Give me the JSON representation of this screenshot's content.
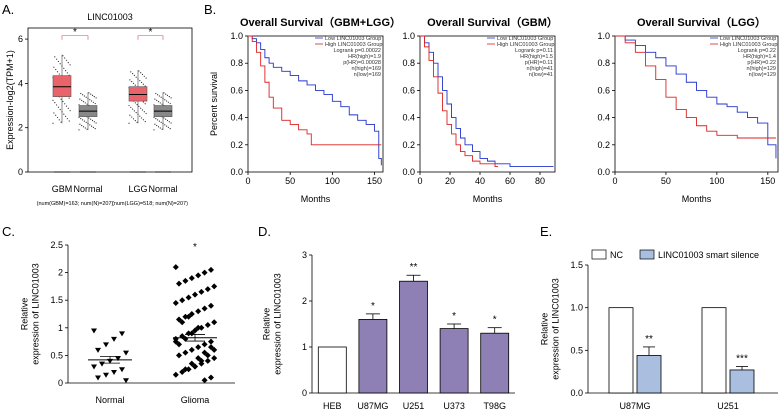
{
  "panels": {
    "a": "A.",
    "b": "B.",
    "c": "C.",
    "d": "D.",
    "e": "E."
  },
  "chart_data": [
    {
      "id": "A",
      "type": "box",
      "title": "LINC01003",
      "ylabel": "Expression-log2(TPM+1)",
      "ylim": [
        0,
        6.5
      ],
      "yticks": [
        "0",
        "2",
        "4",
        "6"
      ],
      "categories": [
        "GBM",
        "Normal",
        "LGG",
        "Normal"
      ],
      "colors": [
        "#e8646a",
        "#888888",
        "#e8646a",
        "#888888"
      ],
      "boxes": [
        {
          "q1": 3.4,
          "median": 3.85,
          "q3": 4.35,
          "min": 2.2,
          "max": 5.3
        },
        {
          "q1": 2.5,
          "median": 2.75,
          "q3": 3.0,
          "min": 1.9,
          "max": 3.6
        },
        {
          "q1": 3.2,
          "median": 3.5,
          "q3": 3.85,
          "min": 2.2,
          "max": 4.6
        },
        {
          "q1": 2.5,
          "median": 2.75,
          "q3": 3.0,
          "min": 1.9,
          "max": 3.6
        }
      ],
      "footnotes": [
        "(num(GBM)=163; num(N)=207)",
        "(num(LGG)=518; num(N)=207)"
      ],
      "significance": [
        "*",
        "*"
      ]
    },
    {
      "id": "B1",
      "type": "line",
      "title": "Overall Survival（GBM+LGG）",
      "xlabel": "Months",
      "ylabel": "Percent survival",
      "xlim": [
        0,
        160
      ],
      "ylim": [
        0,
        1.0
      ],
      "xticks": [
        "0",
        "50",
        "100",
        "150"
      ],
      "yticks": [
        "0.0",
        "0.2",
        "0.4",
        "0.6",
        "0.8",
        "1.0"
      ],
      "legend": [
        "Low LINC01003 Group",
        "High LINC01003 Group",
        "Logrank p=0.00022",
        "HR(high)=1.9",
        "p(HR)=0.00028",
        "n(high)=169",
        "n(low)=169"
      ],
      "series": [
        {
          "name": "Low LINC01003 Group",
          "color": "#2233cc",
          "points": [
            [
              0,
              1
            ],
            [
              5,
              0.98
            ],
            [
              10,
              0.95
            ],
            [
              15,
              0.9
            ],
            [
              20,
              0.84
            ],
            [
              25,
              0.8
            ],
            [
              30,
              0.77
            ],
            [
              40,
              0.74
            ],
            [
              50,
              0.71
            ],
            [
              60,
              0.67
            ],
            [
              70,
              0.64
            ],
            [
              80,
              0.6
            ],
            [
              90,
              0.57
            ],
            [
              100,
              0.52
            ],
            [
              110,
              0.48
            ],
            [
              120,
              0.42
            ],
            [
              130,
              0.38
            ],
            [
              140,
              0.35
            ],
            [
              150,
              0.3
            ],
            [
              155,
              0.1
            ],
            [
              158,
              0.05
            ]
          ]
        },
        {
          "name": "High LINC01003 Group",
          "color": "#dd2222",
          "points": [
            [
              0,
              1
            ],
            [
              5,
              0.96
            ],
            [
              10,
              0.88
            ],
            [
              15,
              0.78
            ],
            [
              20,
              0.66
            ],
            [
              25,
              0.55
            ],
            [
              30,
              0.47
            ],
            [
              40,
              0.38
            ],
            [
              50,
              0.35
            ],
            [
              60,
              0.31
            ],
            [
              70,
              0.28
            ],
            [
              75,
              0.2
            ],
            [
              90,
              0.2
            ],
            [
              100,
              0.2
            ],
            [
              150,
              0.2
            ],
            [
              158,
              0.2
            ]
          ]
        }
      ]
    },
    {
      "id": "B2",
      "type": "line",
      "title": "Overall Survival（GBM）",
      "xlabel": "Months",
      "ylabel": "",
      "xlim": [
        0,
        90
      ],
      "ylim": [
        0,
        1.0
      ],
      "xticks": [
        "0",
        "20",
        "40",
        "60",
        "80"
      ],
      "yticks": [
        "0.0",
        "0.2",
        "0.4",
        "0.6",
        "0.8",
        "1.0"
      ],
      "legend": [
        "Low LINC01003 Group",
        "High LINC01003 Group",
        "Logrank p=0.11",
        "HR(high)=1.5",
        "p(HR)=0.11",
        "n(high)=41",
        "n(low)=41"
      ],
      "series": [
        {
          "name": "Low LINC01003 Group",
          "color": "#2233cc",
          "points": [
            [
              0,
              1
            ],
            [
              3,
              0.95
            ],
            [
              6,
              0.88
            ],
            [
              9,
              0.8
            ],
            [
              12,
              0.7
            ],
            [
              15,
              0.6
            ],
            [
              18,
              0.5
            ],
            [
              21,
              0.4
            ],
            [
              24,
              0.32
            ],
            [
              27,
              0.25
            ],
            [
              30,
              0.2
            ],
            [
              35,
              0.15
            ],
            [
              40,
              0.1
            ],
            [
              45,
              0.08
            ],
            [
              50,
              0.06
            ],
            [
              60,
              0.04
            ],
            [
              89,
              0.04
            ]
          ]
        },
        {
          "name": "High LINC01003 Group",
          "color": "#dd2222",
          "points": [
            [
              0,
              1
            ],
            [
              3,
              0.92
            ],
            [
              6,
              0.82
            ],
            [
              9,
              0.7
            ],
            [
              12,
              0.58
            ],
            [
              15,
              0.45
            ],
            [
              18,
              0.35
            ],
            [
              21,
              0.28
            ],
            [
              24,
              0.2
            ],
            [
              27,
              0.15
            ],
            [
              30,
              0.12
            ],
            [
              35,
              0.08
            ],
            [
              40,
              0.06
            ],
            [
              50,
              0.04
            ],
            [
              52,
              0.04
            ]
          ]
        }
      ]
    },
    {
      "id": "B3",
      "type": "line",
      "title": "Overall Survival（LGG）",
      "xlabel": "Months",
      "ylabel": "",
      "xlim": [
        0,
        160
      ],
      "ylim": [
        0,
        1.0
      ],
      "xticks": [
        "0",
        "50",
        "100",
        "150"
      ],
      "yticks": [
        "0.0",
        "0.2",
        "0.4",
        "0.6",
        "0.8",
        "1.0"
      ],
      "legend": [
        "Low LINC01003 Group",
        "High LINC01003 Group",
        "Logrank p=0.22",
        "HR(high)=1.4",
        "p(HR)=0.22",
        "n(high)=129",
        "n(low)=129"
      ],
      "series": [
        {
          "name": "Low LINC01003 Group",
          "color": "#2233cc",
          "points": [
            [
              0,
              1
            ],
            [
              10,
              0.97
            ],
            [
              20,
              0.93
            ],
            [
              30,
              0.88
            ],
            [
              40,
              0.84
            ],
            [
              50,
              0.78
            ],
            [
              60,
              0.72
            ],
            [
              70,
              0.66
            ],
            [
              80,
              0.6
            ],
            [
              90,
              0.55
            ],
            [
              100,
              0.5
            ],
            [
              110,
              0.48
            ],
            [
              120,
              0.44
            ],
            [
              130,
              0.4
            ],
            [
              140,
              0.36
            ],
            [
              150,
              0.2
            ],
            [
              158,
              0.1
            ]
          ]
        },
        {
          "name": "High LINC01003 Group",
          "color": "#dd2222",
          "points": [
            [
              0,
              1
            ],
            [
              10,
              0.95
            ],
            [
              20,
              0.88
            ],
            [
              30,
              0.78
            ],
            [
              40,
              0.68
            ],
            [
              50,
              0.55
            ],
            [
              60,
              0.46
            ],
            [
              70,
              0.4
            ],
            [
              80,
              0.34
            ],
            [
              90,
              0.3
            ],
            [
              100,
              0.27
            ],
            [
              120,
              0.25
            ],
            [
              150,
              0.25
            ],
            [
              158,
              0.25
            ]
          ]
        }
      ]
    },
    {
      "id": "C",
      "type": "scatter",
      "ylabel": "Relative\nexpression of LINC01003",
      "ylim": [
        0,
        2.5
      ],
      "yticks": [
        "0",
        "0.5",
        "1",
        "1.5",
        "2",
        "2.5"
      ],
      "categories": [
        "Normal",
        "Glioma"
      ],
      "means": [
        0.42,
        0.82
      ],
      "sems": [
        0.06,
        0.06
      ],
      "significance": [
        "",
        "*"
      ],
      "normal_values": [
        0.95,
        0.9,
        0.8,
        0.7,
        0.6,
        0.55,
        0.45,
        0.4,
        0.35,
        0.3,
        0.25,
        0.2,
        0.15,
        0.1,
        0.05
      ],
      "glioma_values": [
        2.1,
        2.05,
        2.0,
        1.95,
        1.9,
        1.85,
        1.8,
        1.75,
        1.7,
        1.65,
        1.6,
        1.55,
        1.5,
        1.45,
        1.4,
        1.35,
        1.3,
        1.25,
        1.2,
        1.15,
        1.1,
        1.05,
        1.0,
        0.95,
        0.9,
        0.85,
        0.8,
        0.75,
        0.7,
        0.65,
        0.6,
        0.55,
        0.5,
        0.45,
        0.4,
        0.35,
        0.3,
        0.25,
        0.2,
        0.15,
        0.1,
        0.05,
        1.0,
        0.9,
        0.8,
        0.7,
        0.6,
        0.5,
        0.4,
        0.3,
        1.2,
        1.1,
        0.75,
        0.65,
        0.55,
        0.45,
        0.35,
        0.25
      ]
    },
    {
      "id": "D",
      "type": "bar",
      "ylabel": "Relative\nexpression of LINC01003",
      "ylim": [
        0,
        3
      ],
      "yticks": [
        "0",
        "1",
        "2",
        "3"
      ],
      "categories": [
        "HEB",
        "U87MG",
        "U251",
        "U373",
        "T98G"
      ],
      "values": [
        1.0,
        1.6,
        2.43,
        1.4,
        1.3
      ],
      "errors": [
        0,
        0.12,
        0.13,
        0.1,
        0.12
      ],
      "colors": [
        "#ffffff",
        "#8e80b5",
        "#8e80b5",
        "#8e80b5",
        "#8e80b5"
      ],
      "significance": [
        "",
        "*",
        "**",
        "*",
        "*"
      ]
    },
    {
      "id": "E",
      "type": "bar",
      "ylabel": "Relative\nexpression of LINC01003",
      "ylim": [
        0,
        1.5
      ],
      "yticks": [
        "0.0",
        "0.5",
        "1.0",
        "1.5"
      ],
      "categories": [
        "U87MG",
        "U251"
      ],
      "series": [
        {
          "name": "NC",
          "color": "#ffffff",
          "values": [
            1.0,
            1.0
          ],
          "errors": [
            0,
            0
          ]
        },
        {
          "name": "LINC01003 smart silence",
          "color": "#aabfe0",
          "values": [
            0.44,
            0.27
          ],
          "errors": [
            0.1,
            0.04
          ]
        }
      ],
      "significance": [
        "**",
        "***"
      ]
    }
  ]
}
